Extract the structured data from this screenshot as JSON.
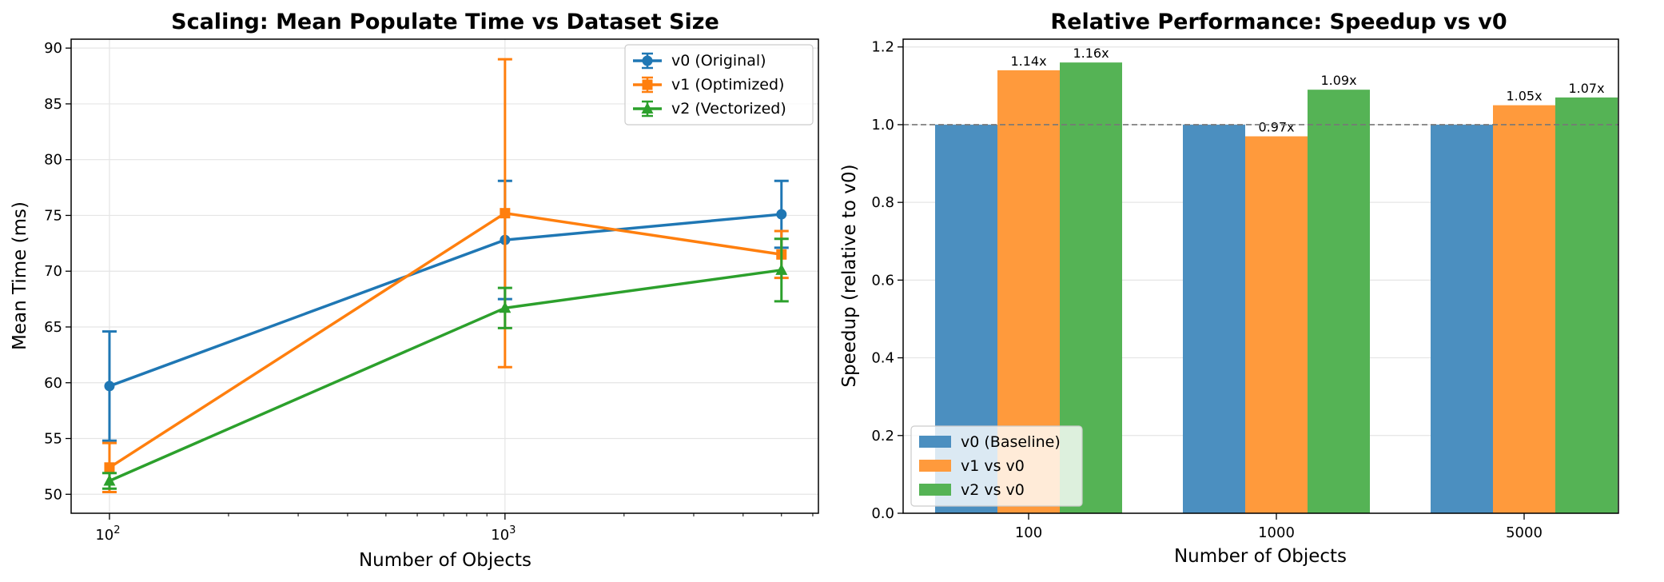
{
  "colors": {
    "v0": "#1f77b4",
    "v1": "#ff7f0e",
    "v2": "#2ca02c",
    "bar_v0": "#4b8fc0",
    "bar_v1": "#ff9a3c",
    "bar_v2": "#55b355"
  },
  "chart_data": [
    {
      "type": "line",
      "title": "Scaling: Mean Populate Time vs Dataset Size",
      "xlabel": "Number of Objects",
      "ylabel": "Mean Time (ms)",
      "xscale": "log",
      "x": [
        100,
        1000,
        5000
      ],
      "xlim": [
        80,
        6200
      ],
      "ylim": [
        48.3,
        90.8
      ],
      "yticks": [
        50,
        55,
        60,
        65,
        70,
        75,
        80,
        85,
        90
      ],
      "xticks": [
        {
          "value": 100,
          "base": "10",
          "exp": "2"
        },
        {
          "value": 1000,
          "base": "10",
          "exp": "3"
        }
      ],
      "grid": true,
      "legend": "upper right",
      "series": [
        {
          "name": "v0 (Original)",
          "color_key": "v0",
          "marker": "circle",
          "values": [
            59.7,
            72.8,
            75.1
          ],
          "errors": [
            4.9,
            5.3,
            3.0
          ]
        },
        {
          "name": "v1 (Optimized)",
          "color_key": "v1",
          "marker": "square",
          "values": [
            52.4,
            75.2,
            71.5
          ],
          "errors": [
            2.2,
            13.8,
            2.1
          ]
        },
        {
          "name": "v2 (Vectorized)",
          "color_key": "v2",
          "marker": "triangle",
          "values": [
            51.2,
            66.7,
            70.1
          ],
          "errors": [
            0.7,
            1.8,
            2.8
          ]
        }
      ]
    },
    {
      "type": "bar",
      "title": "Relative Performance: Speedup vs v0",
      "xlabel": "Number of Objects",
      "ylabel": "Speedup (relative to v0)",
      "categories": [
        "100",
        "1000",
        "5000"
      ],
      "ylim": [
        0,
        1.22
      ],
      "yticks": [
        0.0,
        0.2,
        0.4,
        0.6,
        0.8,
        1.0,
        1.2
      ],
      "reference_line": 1.0,
      "grid": true,
      "legend": "lower left",
      "series": [
        {
          "name": "v0 (Baseline)",
          "color_key": "bar_v0",
          "values": [
            1.0,
            1.0,
            1.0
          ],
          "labels": [
            "",
            "",
            ""
          ]
        },
        {
          "name": "v1 vs v0",
          "color_key": "bar_v1",
          "values": [
            1.14,
            0.97,
            1.05
          ],
          "labels": [
            "1.14x",
            "0.97x",
            "1.05x"
          ]
        },
        {
          "name": "v2 vs v0",
          "color_key": "bar_v2",
          "values": [
            1.16,
            1.09,
            1.07
          ],
          "labels": [
            "1.16x",
            "1.09x",
            "1.07x"
          ]
        }
      ]
    }
  ]
}
